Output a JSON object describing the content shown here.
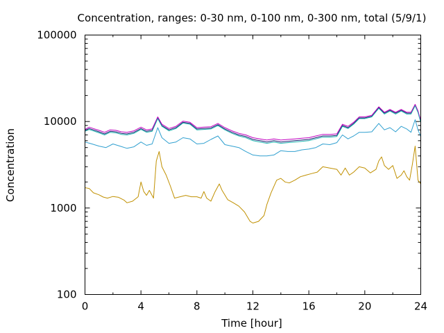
{
  "chart_data": {
    "type": "line",
    "title": "Concentration, ranges: 0-30 nm, 0-100 nm, 0-300 nm, total (5/9/1)",
    "xlabel": "Time [hour]",
    "ylabel": "Concentration",
    "xlim": [
      0,
      24
    ],
    "ylim": [
      100,
      100000
    ],
    "yscale": "log",
    "grid": false,
    "x_ticks": [
      0,
      4,
      8,
      12,
      16,
      20,
      24
    ],
    "x_tick_labels": [
      "0",
      "4",
      "8",
      "12",
      "16",
      "20",
      "24"
    ],
    "y_ticks": [
      100,
      1000,
      10000,
      100000
    ],
    "y_tick_labels": [
      "100",
      "1000",
      "10000",
      "100000"
    ],
    "series": [
      {
        "color": "#c09000",
        "points": [
          [
            0,
            1720
          ],
          [
            0.3,
            1680
          ],
          [
            0.6,
            1500
          ],
          [
            1.0,
            1420
          ],
          [
            1.3,
            1340
          ],
          [
            1.6,
            1300
          ],
          [
            2.0,
            1360
          ],
          [
            2.4,
            1330
          ],
          [
            2.8,
            1230
          ],
          [
            3.0,
            1150
          ],
          [
            3.4,
            1200
          ],
          [
            3.8,
            1350
          ],
          [
            4.0,
            2000
          ],
          [
            4.2,
            1550
          ],
          [
            4.4,
            1400
          ],
          [
            4.6,
            1600
          ],
          [
            4.9,
            1300
          ],
          [
            5.1,
            3500
          ],
          [
            5.3,
            4500
          ],
          [
            5.5,
            3000
          ],
          [
            5.8,
            2400
          ],
          [
            6.1,
            1800
          ],
          [
            6.4,
            1300
          ],
          [
            6.8,
            1350
          ],
          [
            7.2,
            1400
          ],
          [
            7.6,
            1350
          ],
          [
            8.0,
            1350
          ],
          [
            8.3,
            1300
          ],
          [
            8.5,
            1550
          ],
          [
            8.7,
            1300
          ],
          [
            9.0,
            1200
          ],
          [
            9.3,
            1550
          ],
          [
            9.6,
            1900
          ],
          [
            9.8,
            1600
          ],
          [
            10.2,
            1250
          ],
          [
            10.6,
            1150
          ],
          [
            11.0,
            1050
          ],
          [
            11.4,
            900
          ],
          [
            11.8,
            700
          ],
          [
            12.0,
            670
          ],
          [
            12.4,
            700
          ],
          [
            12.8,
            820
          ],
          [
            13.0,
            1100
          ],
          [
            13.3,
            1500
          ],
          [
            13.7,
            2100
          ],
          [
            14.0,
            2200
          ],
          [
            14.3,
            2000
          ],
          [
            14.6,
            1950
          ],
          [
            15.0,
            2100
          ],
          [
            15.4,
            2300
          ],
          [
            15.8,
            2400
          ],
          [
            16.2,
            2500
          ],
          [
            16.6,
            2600
          ],
          [
            17.0,
            3000
          ],
          [
            17.5,
            2900
          ],
          [
            18.0,
            2800
          ],
          [
            18.3,
            2400
          ],
          [
            18.6,
            2900
          ],
          [
            18.9,
            2400
          ],
          [
            19.2,
            2600
          ],
          [
            19.6,
            3000
          ],
          [
            20.0,
            2900
          ],
          [
            20.4,
            2550
          ],
          [
            20.8,
            2800
          ],
          [
            21.0,
            3500
          ],
          [
            21.2,
            3900
          ],
          [
            21.4,
            3100
          ],
          [
            21.7,
            2800
          ],
          [
            22.0,
            3100
          ],
          [
            22.3,
            2200
          ],
          [
            22.6,
            2400
          ],
          [
            22.8,
            2700
          ],
          [
            23.0,
            2300
          ],
          [
            23.2,
            2100
          ],
          [
            23.4,
            3200
          ],
          [
            23.6,
            5200
          ],
          [
            23.8,
            2100
          ],
          [
            24.0,
            1900
          ]
        ]
      },
      {
        "color": "#30a0d0",
        "points": [
          [
            0,
            5800
          ],
          [
            0.5,
            5500
          ],
          [
            1.0,
            5200
          ],
          [
            1.5,
            5000
          ],
          [
            2.0,
            5500
          ],
          [
            2.5,
            5200
          ],
          [
            3.0,
            4900
          ],
          [
            3.5,
            5100
          ],
          [
            4.0,
            5800
          ],
          [
            4.4,
            5300
          ],
          [
            4.8,
            5500
          ],
          [
            5.2,
            8500
          ],
          [
            5.5,
            6500
          ],
          [
            6.0,
            5600
          ],
          [
            6.5,
            5800
          ],
          [
            7.0,
            6500
          ],
          [
            7.5,
            6300
          ],
          [
            8.0,
            5500
          ],
          [
            8.5,
            5600
          ],
          [
            9.0,
            6200
          ],
          [
            9.5,
            6800
          ],
          [
            10.0,
            5400
          ],
          [
            10.5,
            5200
          ],
          [
            11.0,
            5000
          ],
          [
            11.5,
            4500
          ],
          [
            12.0,
            4100
          ],
          [
            12.5,
            4000
          ],
          [
            13.0,
            4000
          ],
          [
            13.5,
            4100
          ],
          [
            14.0,
            4600
          ],
          [
            14.5,
            4500
          ],
          [
            15.0,
            4500
          ],
          [
            15.5,
            4700
          ],
          [
            16.0,
            4800
          ],
          [
            16.5,
            5000
          ],
          [
            17.0,
            5500
          ],
          [
            17.5,
            5400
          ],
          [
            18.0,
            5700
          ],
          [
            18.4,
            7000
          ],
          [
            18.8,
            6300
          ],
          [
            19.2,
            6800
          ],
          [
            19.6,
            7500
          ],
          [
            20.0,
            7500
          ],
          [
            20.5,
            7600
          ],
          [
            21.0,
            9500
          ],
          [
            21.4,
            8000
          ],
          [
            21.8,
            8500
          ],
          [
            22.2,
            7600
          ],
          [
            22.6,
            8800
          ],
          [
            23.0,
            8200
          ],
          [
            23.3,
            7500
          ],
          [
            23.6,
            10500
          ],
          [
            23.8,
            8000
          ],
          [
            24.0,
            6700
          ]
        ]
      },
      {
        "color": "#1a1a70",
        "points": [
          [
            0,
            7900
          ],
          [
            0.3,
            8300
          ],
          [
            0.6,
            8000
          ],
          [
            1.0,
            7600
          ],
          [
            1.4,
            7200
          ],
          [
            1.8,
            7700
          ],
          [
            2.2,
            7600
          ],
          [
            2.6,
            7300
          ],
          [
            3.0,
            7200
          ],
          [
            3.5,
            7500
          ],
          [
            4.0,
            8300
          ],
          [
            4.4,
            7700
          ],
          [
            4.8,
            7900
          ],
          [
            5.2,
            11000
          ],
          [
            5.5,
            9000
          ],
          [
            6.0,
            8000
          ],
          [
            6.5,
            8500
          ],
          [
            7.0,
            9800
          ],
          [
            7.5,
            9500
          ],
          [
            8.0,
            8200
          ],
          [
            8.5,
            8300
          ],
          [
            9.0,
            8400
          ],
          [
            9.5,
            9200
          ],
          [
            10.0,
            8200
          ],
          [
            10.5,
            7500
          ],
          [
            11.0,
            7000
          ],
          [
            11.5,
            6700
          ],
          [
            12.0,
            6200
          ],
          [
            12.5,
            6000
          ],
          [
            13.0,
            5800
          ],
          [
            13.5,
            6000
          ],
          [
            14.0,
            5800
          ],
          [
            14.5,
            5900
          ],
          [
            15.0,
            6000
          ],
          [
            15.5,
            6100
          ],
          [
            16.0,
            6200
          ],
          [
            16.5,
            6500
          ],
          [
            17.0,
            6800
          ],
          [
            17.5,
            6800
          ],
          [
            18.0,
            6900
          ],
          [
            18.4,
            9000
          ],
          [
            18.8,
            8500
          ],
          [
            19.2,
            9500
          ],
          [
            19.6,
            11000
          ],
          [
            20.0,
            11000
          ],
          [
            20.5,
            11500
          ],
          [
            21.0,
            14500
          ],
          [
            21.4,
            12500
          ],
          [
            21.8,
            13500
          ],
          [
            22.2,
            12500
          ],
          [
            22.6,
            13500
          ],
          [
            23.0,
            12500
          ],
          [
            23.3,
            12500
          ],
          [
            23.6,
            15500
          ],
          [
            23.8,
            13000
          ],
          [
            24.0,
            10000
          ]
        ]
      },
      {
        "color": "#c000c0",
        "points": [
          [
            0,
            8100
          ],
          [
            0.3,
            8600
          ],
          [
            0.6,
            8300
          ],
          [
            1.0,
            7900
          ],
          [
            1.4,
            7500
          ],
          [
            1.8,
            8000
          ],
          [
            2.2,
            7900
          ],
          [
            2.6,
            7600
          ],
          [
            3.0,
            7500
          ],
          [
            3.5,
            7800
          ],
          [
            4.0,
            8600
          ],
          [
            4.4,
            8000
          ],
          [
            4.8,
            8200
          ],
          [
            5.2,
            11300
          ],
          [
            5.5,
            9300
          ],
          [
            6.0,
            8300
          ],
          [
            6.5,
            8800
          ],
          [
            7.0,
            10100
          ],
          [
            7.5,
            9800
          ],
          [
            8.0,
            8500
          ],
          [
            8.5,
            8600
          ],
          [
            9.0,
            8700
          ],
          [
            9.5,
            9500
          ],
          [
            10.0,
            8500
          ],
          [
            10.5,
            7800
          ],
          [
            11.0,
            7300
          ],
          [
            11.5,
            7000
          ],
          [
            12.0,
            6500
          ],
          [
            12.5,
            6300
          ],
          [
            13.0,
            6100
          ],
          [
            13.5,
            6300
          ],
          [
            14.0,
            6100
          ],
          [
            14.5,
            6200
          ],
          [
            15.0,
            6300
          ],
          [
            15.5,
            6400
          ],
          [
            16.0,
            6500
          ],
          [
            16.5,
            6800
          ],
          [
            17.0,
            7100
          ],
          [
            17.5,
            7100
          ],
          [
            18.0,
            7200
          ],
          [
            18.4,
            9300
          ],
          [
            18.8,
            8800
          ],
          [
            19.2,
            9800
          ],
          [
            19.6,
            11300
          ],
          [
            20.0,
            11300
          ],
          [
            20.5,
            11800
          ],
          [
            21.0,
            14800
          ],
          [
            21.4,
            12800
          ],
          [
            21.8,
            13800
          ],
          [
            22.2,
            12800
          ],
          [
            22.6,
            13800
          ],
          [
            23.0,
            12800
          ],
          [
            23.3,
            12800
          ],
          [
            23.6,
            15800
          ],
          [
            23.8,
            13300
          ],
          [
            24.0,
            10300
          ]
        ]
      },
      {
        "color": "#20b8b0",
        "points": [
          [
            0,
            7700
          ],
          [
            0.3,
            8100
          ],
          [
            0.6,
            7800
          ],
          [
            1.0,
            7400
          ],
          [
            1.4,
            7000
          ],
          [
            1.8,
            7500
          ],
          [
            2.2,
            7400
          ],
          [
            2.6,
            7100
          ],
          [
            3.0,
            7000
          ],
          [
            3.5,
            7300
          ],
          [
            4.0,
            8100
          ],
          [
            4.4,
            7500
          ],
          [
            4.8,
            7700
          ],
          [
            5.2,
            10800
          ],
          [
            5.5,
            8800
          ],
          [
            6.0,
            7800
          ],
          [
            6.5,
            8300
          ],
          [
            7.0,
            9600
          ],
          [
            7.5,
            9300
          ],
          [
            8.0,
            8000
          ],
          [
            8.5,
            8100
          ],
          [
            9.0,
            8200
          ],
          [
            9.5,
            9000
          ],
          [
            10.0,
            8000
          ],
          [
            10.5,
            7300
          ],
          [
            11.0,
            6800
          ],
          [
            11.5,
            6500
          ],
          [
            12.0,
            6000
          ],
          [
            12.5,
            5800
          ],
          [
            13.0,
            5600
          ],
          [
            13.5,
            5800
          ],
          [
            14.0,
            5600
          ],
          [
            14.5,
            5700
          ],
          [
            15.0,
            5800
          ],
          [
            15.5,
            5900
          ],
          [
            16.0,
            6000
          ],
          [
            16.5,
            6300
          ],
          [
            17.0,
            6600
          ],
          [
            17.5,
            6600
          ],
          [
            18.0,
            6700
          ],
          [
            18.4,
            8800
          ],
          [
            18.8,
            8300
          ],
          [
            19.2,
            9300
          ],
          [
            19.6,
            10800
          ],
          [
            20.0,
            10800
          ],
          [
            20.5,
            11300
          ],
          [
            21.0,
            14200
          ],
          [
            21.4,
            12200
          ],
          [
            21.8,
            13200
          ],
          [
            22.2,
            12200
          ],
          [
            22.6,
            13200
          ],
          [
            23.0,
            12200
          ],
          [
            23.3,
            12200
          ],
          [
            23.6,
            15200
          ],
          [
            23.8,
            12700
          ],
          [
            24.0,
            9700
          ]
        ]
      }
    ]
  }
}
